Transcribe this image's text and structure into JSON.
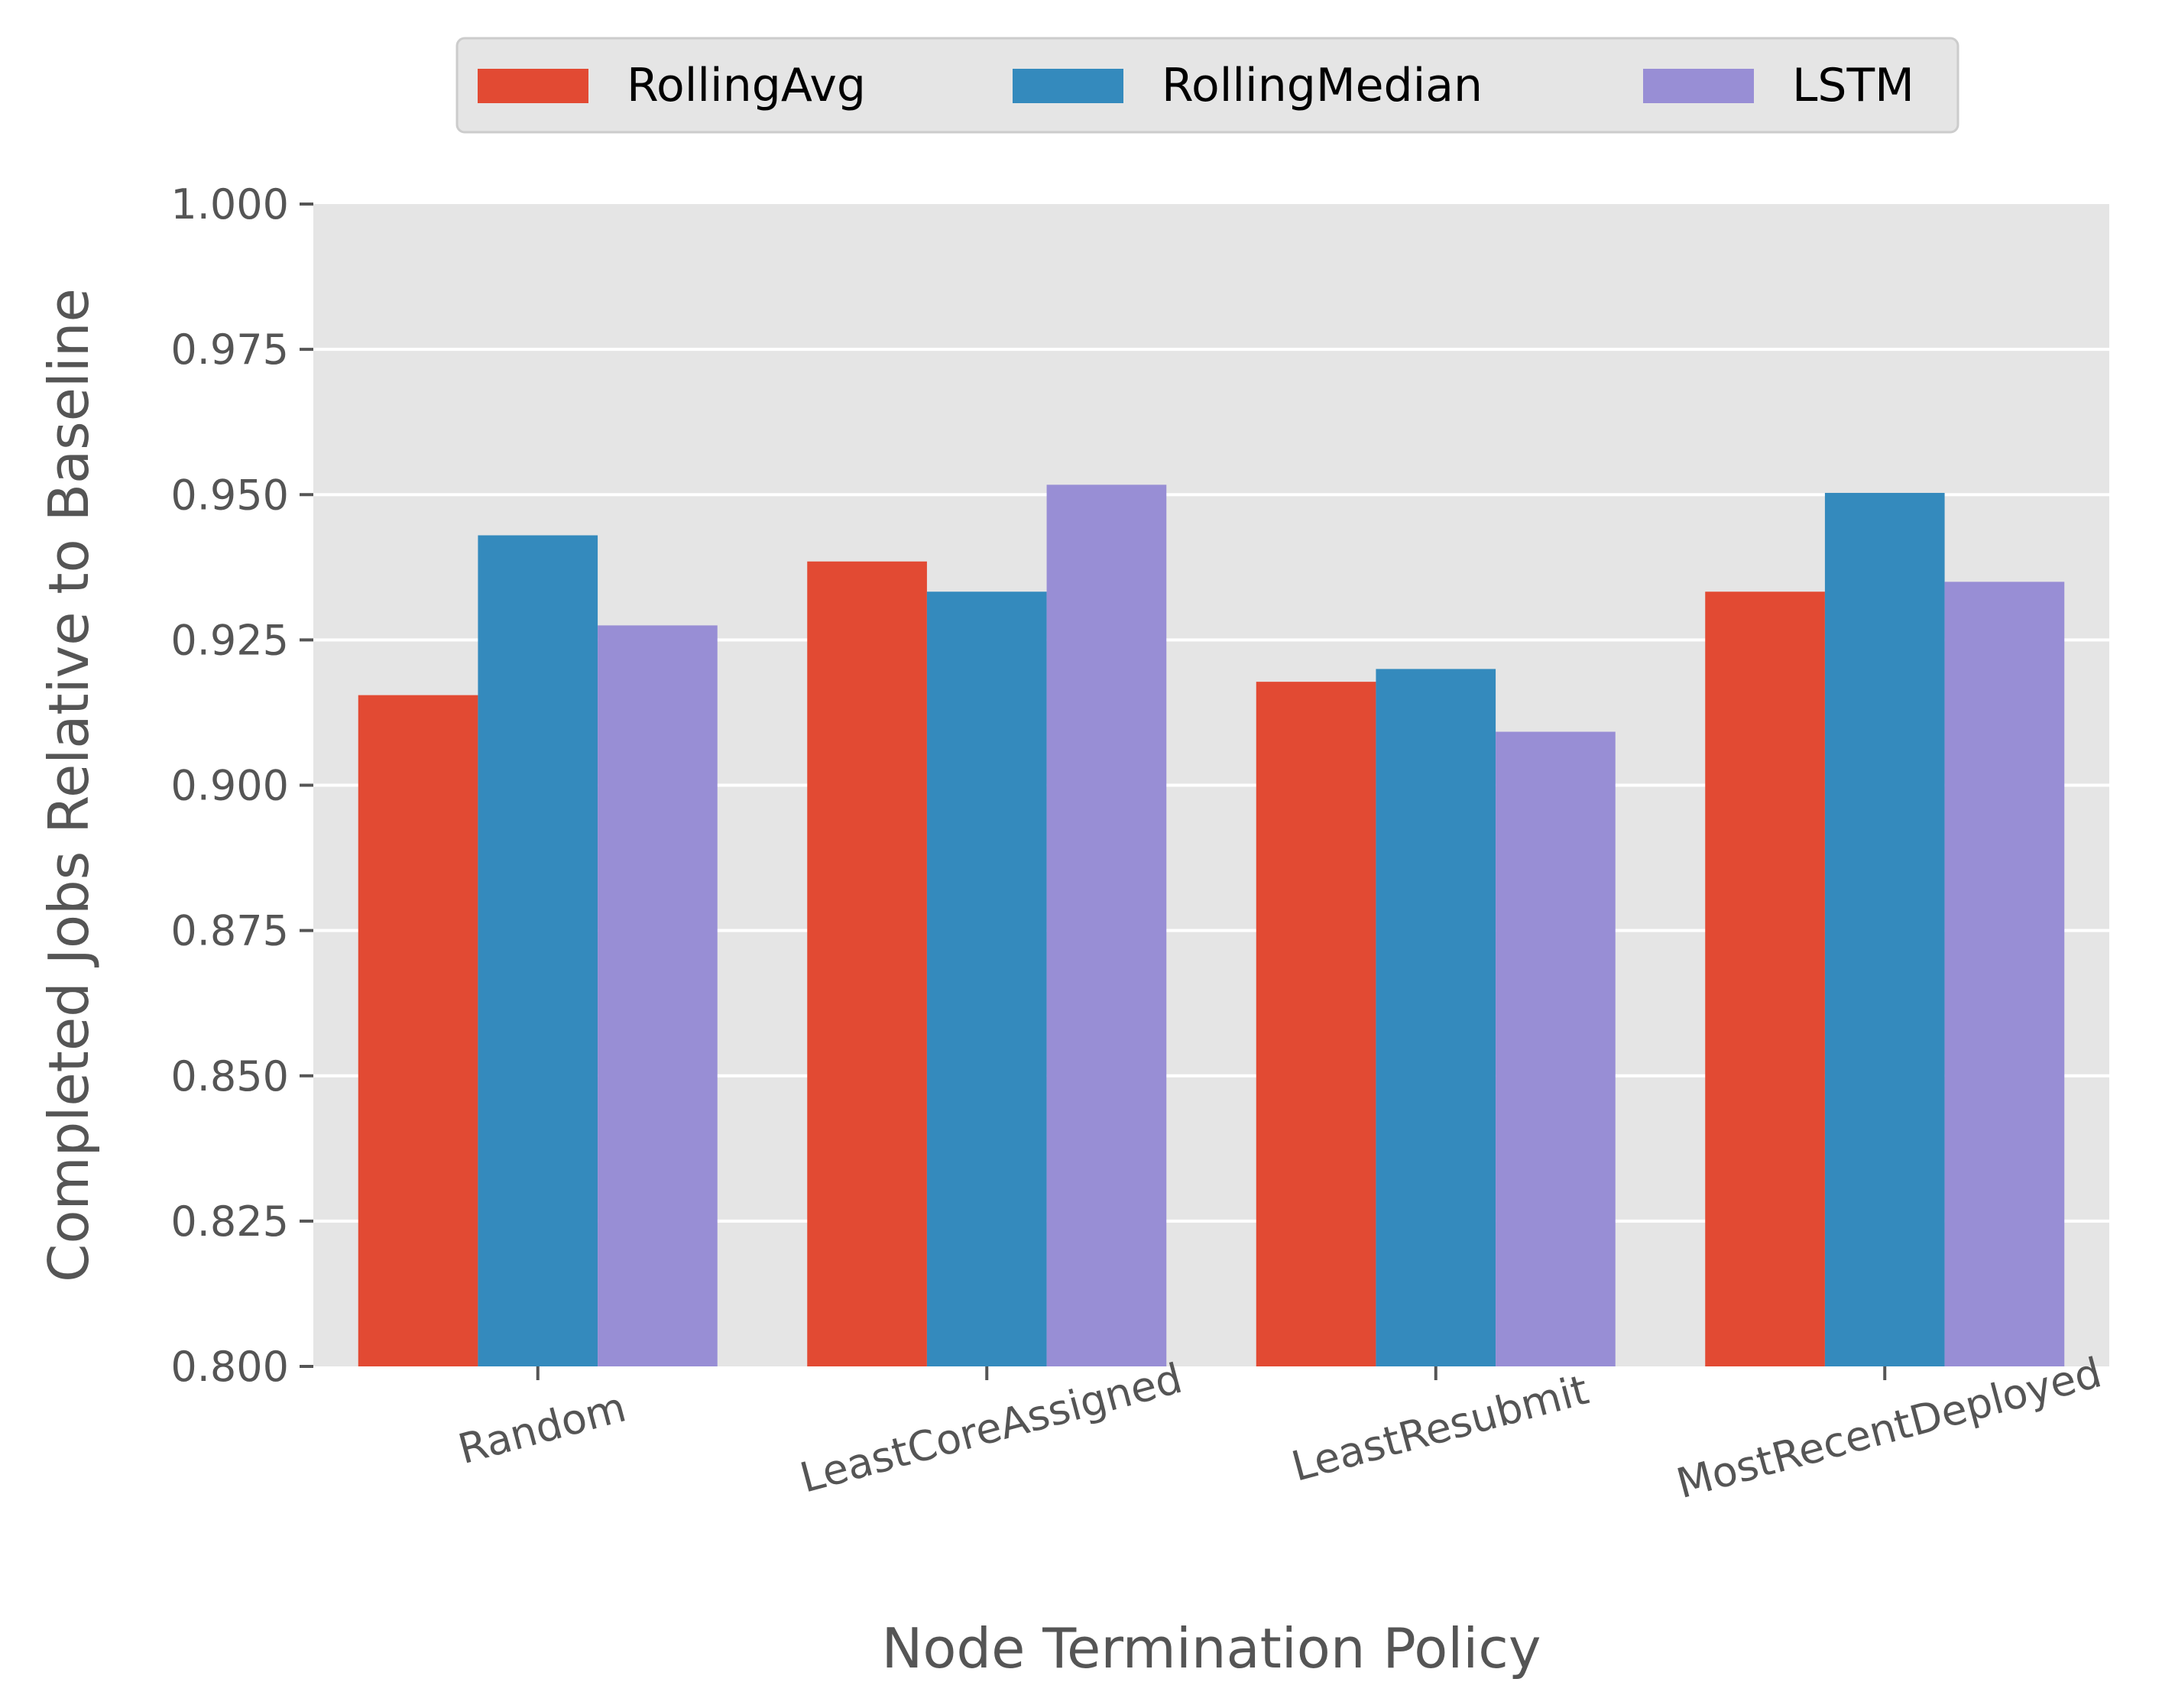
{
  "chart_data": {
    "type": "bar",
    "xlabel": "Node Termination Policy",
    "ylabel": "Completed Jobs Relative to Baseline",
    "ylim": [
      0.8,
      1.0
    ],
    "yticks": [
      "0.800",
      "0.825",
      "0.850",
      "0.875",
      "0.900",
      "0.925",
      "0.950",
      "0.975",
      "1.000"
    ],
    "categories": [
      "Random",
      "LeastCoreAssigned",
      "LeastResubmit",
      "MostRecentDeployed"
    ],
    "series": [
      {
        "name": "RollingAvg",
        "color": "#E24A33",
        "values": [
          0.9155,
          0.9385,
          0.9178,
          0.9333
        ]
      },
      {
        "name": "RollingMedian",
        "color": "#348ABD",
        "values": [
          0.943,
          0.9333,
          0.92,
          0.9503
        ]
      },
      {
        "name": "LSTM",
        "color": "#988ED5",
        "values": [
          0.9275,
          0.9517,
          0.9092,
          0.935
        ]
      }
    ],
    "grid": true,
    "legend_position": "top-center"
  }
}
